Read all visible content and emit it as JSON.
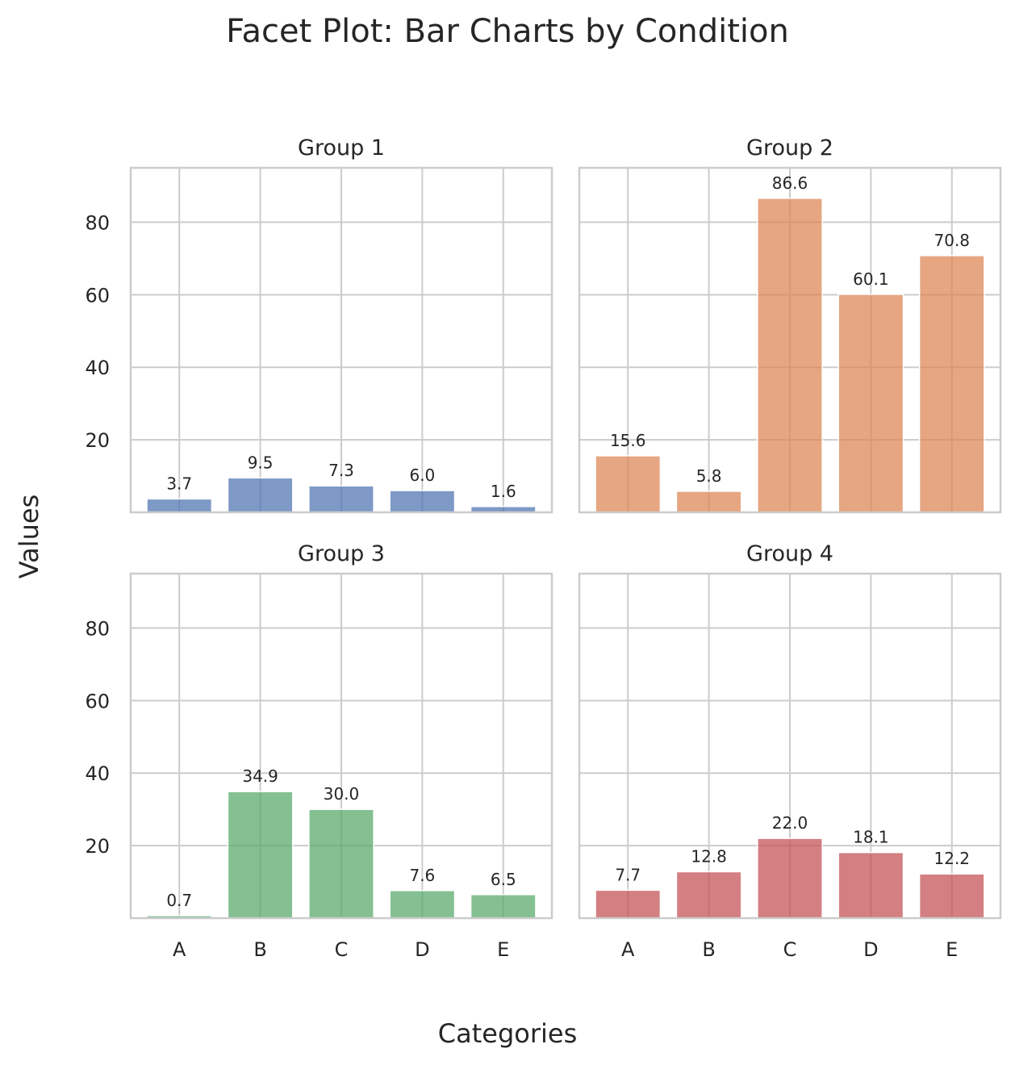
{
  "chart_data": {
    "type": "bar",
    "title": "Facet Plot: Bar Charts by Condition",
    "xlabel": "Categories",
    "ylabel": "Values",
    "ylim": [
      0,
      95
    ],
    "yticks": [
      20,
      40,
      60,
      80
    ],
    "categories": [
      "A",
      "B",
      "C",
      "D",
      "E"
    ],
    "grid": true,
    "panels": [
      {
        "title": "Group 1",
        "color": "#4c72b0",
        "values": [
          3.7,
          9.5,
          7.3,
          6.0,
          1.6
        ]
      },
      {
        "title": "Group 2",
        "color": "#dd8452",
        "values": [
          15.6,
          5.8,
          86.6,
          60.1,
          70.8
        ]
      },
      {
        "title": "Group 3",
        "color": "#55a868",
        "values": [
          0.7,
          34.9,
          30.0,
          7.6,
          6.5
        ]
      },
      {
        "title": "Group 4",
        "color": "#c44e52",
        "values": [
          7.7,
          12.8,
          22.0,
          18.1,
          12.2
        ]
      }
    ]
  }
}
